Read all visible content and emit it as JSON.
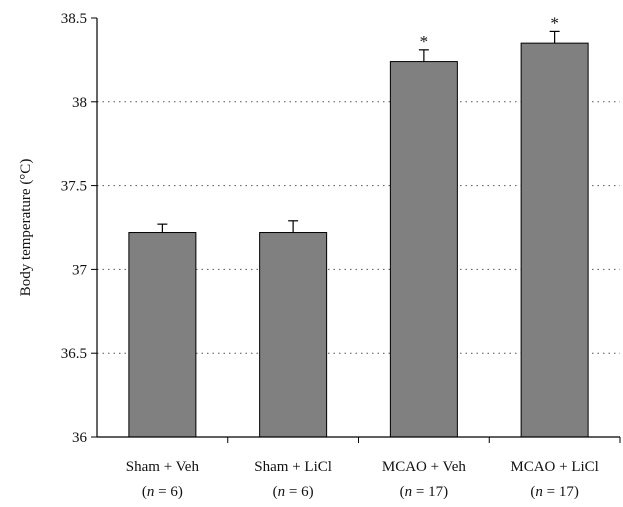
{
  "chart_data": {
    "type": "bar",
    "title": "",
    "xlabel": "",
    "ylabel": "Body temperature (°C)",
    "ylim": [
      36,
      38.5
    ],
    "yticks": [
      "36",
      "36.5",
      "37",
      "37.5",
      "38",
      "38.5"
    ],
    "grid": "horizontal dotted",
    "categories": [
      {
        "name": "Sham + Veh",
        "n_label": "n",
        "n_value": "= 6)"
      },
      {
        "name": "Sham + LiCl",
        "n_label": "n",
        "n_value": "= 6)"
      },
      {
        "name": "MCAO + Veh",
        "n_label": "n",
        "n_value": "=  17)"
      },
      {
        "name": "MCAO + LiCl",
        "n_label": "n",
        "n_value": "= 17)"
      }
    ],
    "values": [
      37.22,
      37.22,
      38.24,
      38.35
    ],
    "errors": [
      0.05,
      0.07,
      0.07,
      0.07
    ],
    "significance": [
      "",
      "",
      "*",
      "*"
    ],
    "bar_color": "#808080",
    "bar_stroke": "#000000"
  }
}
